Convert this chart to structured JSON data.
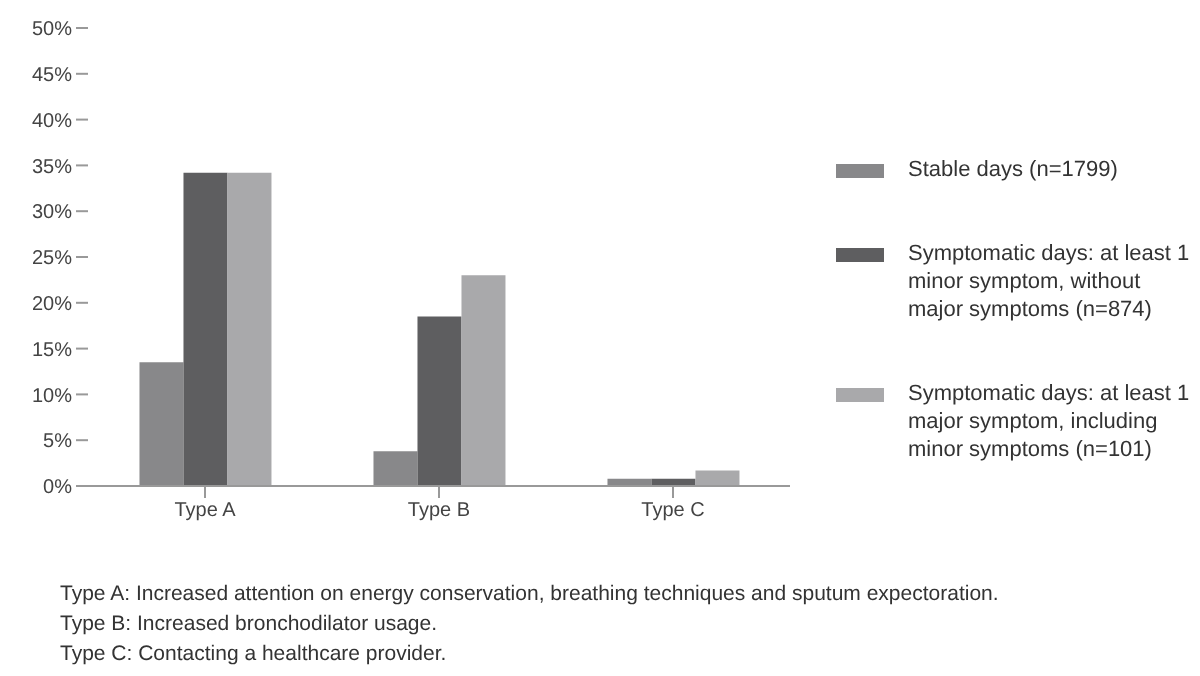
{
  "chart_data": {
    "type": "bar",
    "categories": [
      "Type A",
      "Type B",
      "Type C"
    ],
    "series": [
      {
        "name": "Stable days (n=1799)",
        "color": "#88888a",
        "values": [
          13.5,
          3.8,
          0.8
        ]
      },
      {
        "name": "Symptomatic days: at least 1 minor symptom, without major symptoms (n=874)",
        "color": "#5e5e60",
        "values": [
          34.2,
          18.5,
          0.8
        ]
      },
      {
        "name": "Symptomatic days: at least 1 major symptom, including minor symptoms (n=101)",
        "color": "#a9a9ab",
        "values": [
          34.2,
          23,
          1.7
        ]
      }
    ],
    "ylim": [
      0,
      50
    ],
    "yticks": [
      {
        "value": 0,
        "label": "0%"
      },
      {
        "value": 5,
        "label": "5%"
      },
      {
        "value": 10,
        "label": "10%"
      },
      {
        "value": 15,
        "label": "15%"
      },
      {
        "value": 20,
        "label": "20%"
      },
      {
        "value": 25,
        "label": "25%"
      },
      {
        "value": 30,
        "label": "30%"
      },
      {
        "value": 35,
        "label": "35%"
      },
      {
        "value": 40,
        "label": "40%"
      },
      {
        "value": 45,
        "label": "45%"
      },
      {
        "value": 50,
        "label": "50%"
      }
    ],
    "grid": false,
    "legend": "right",
    "annotations": [
      "Type A: Increased attention on energy conservation, breathing techniques and sputum expectoration.",
      "Type B: Increased bronchodilator usage.",
      "Type C: Contacting a healthcare provider."
    ]
  }
}
